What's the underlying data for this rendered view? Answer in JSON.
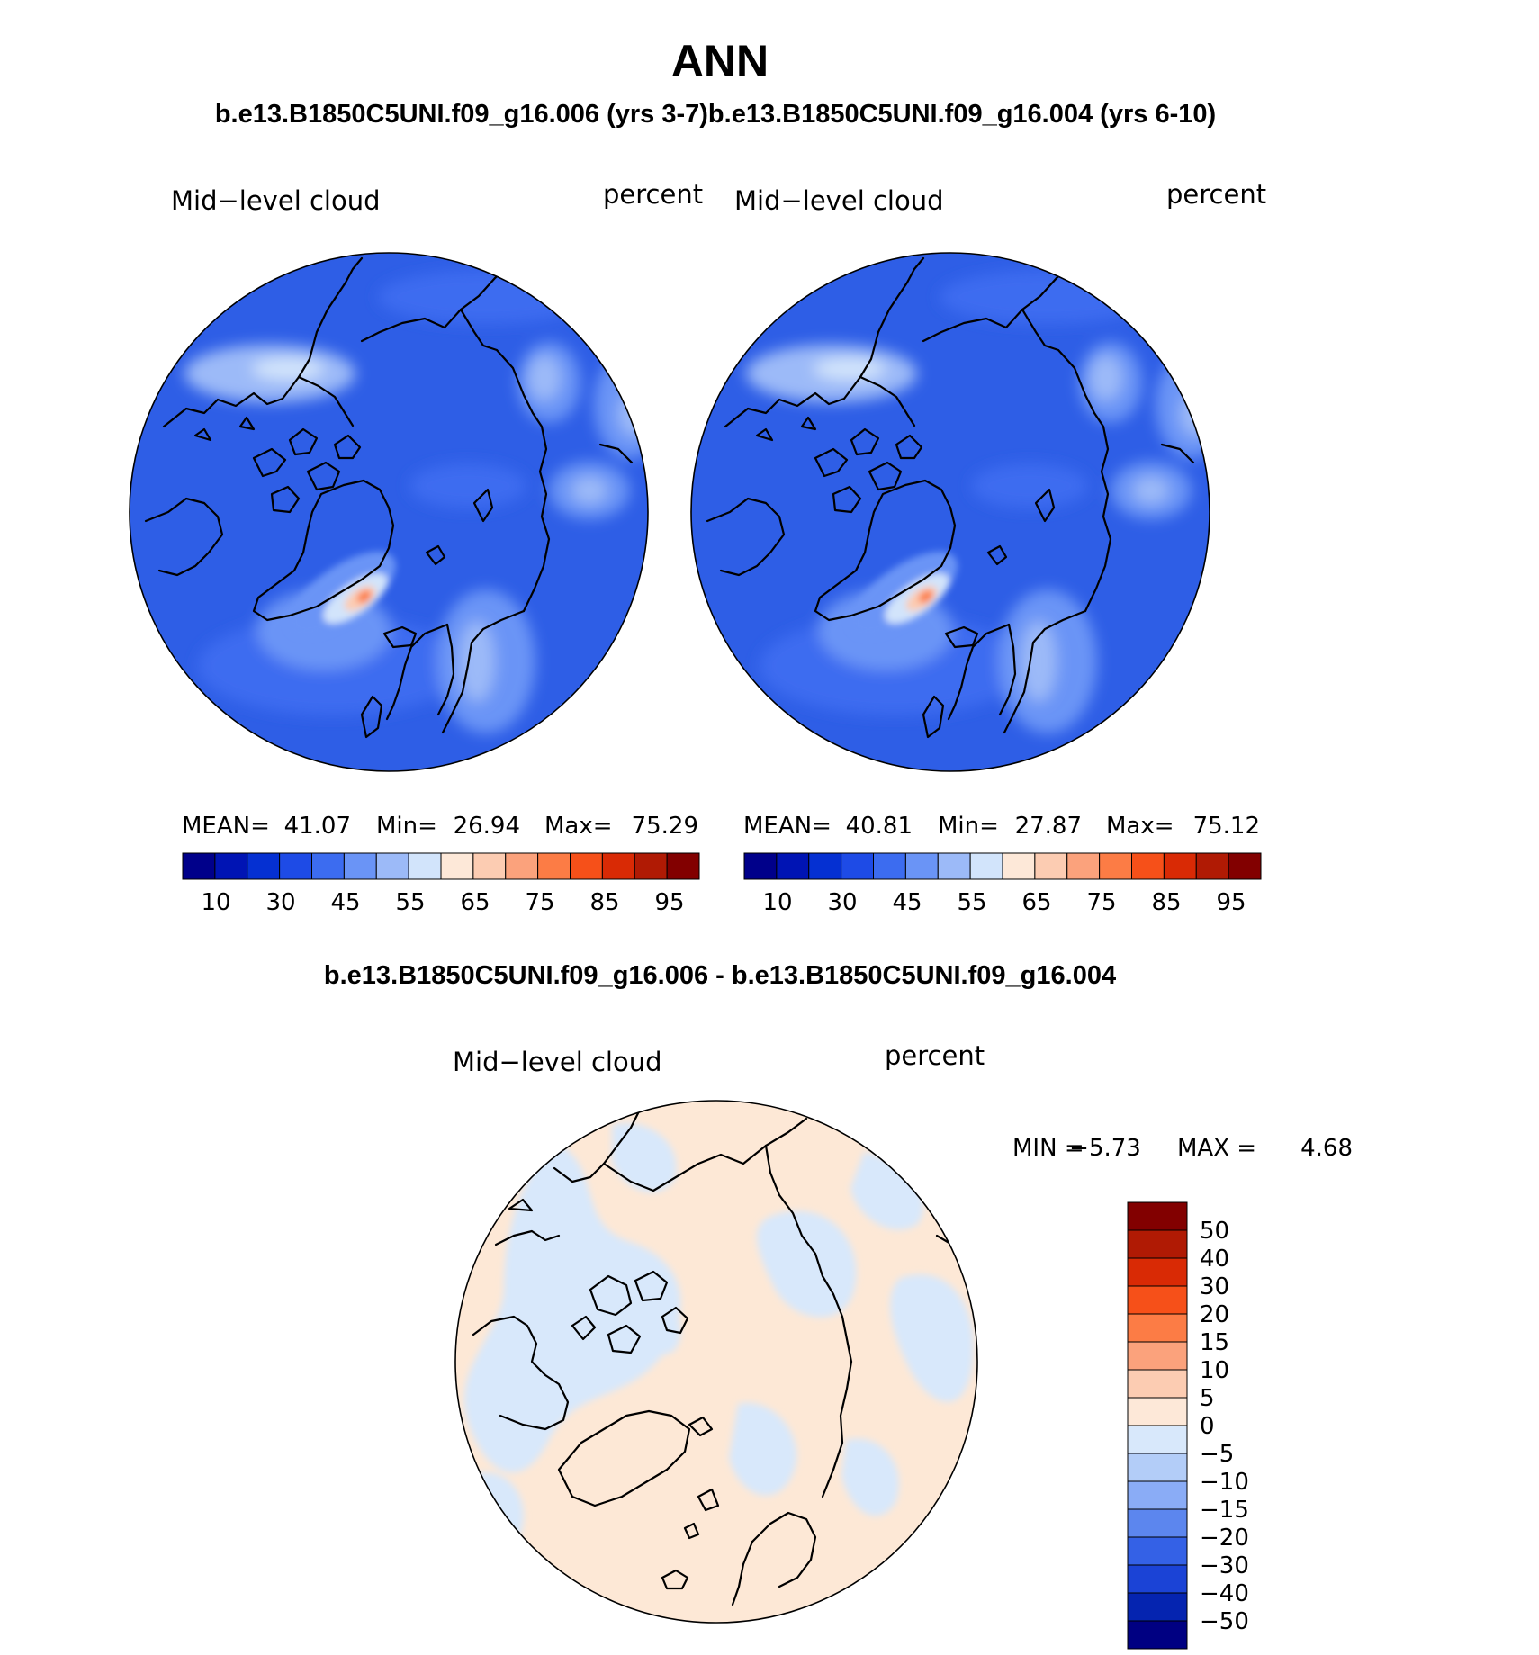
{
  "title": "ANN",
  "subtitle": "b.e13.B1850C5UNI.f09_g16.006 (yrs 3-7)b.e13.B1850C5UNI.f09_g16.004 (yrs 6-10)",
  "diff_title": "b.e13.B1850C5UNI.f09_g16.006 - b.e13.B1850C5UNI.f09_g16.004",
  "colors": {
    "ocean_blue": "#2e5ee6",
    "light_blue": "#5a88f0",
    "diff_pos": "#fde8d6",
    "diff_neg": "#d8e8fb"
  },
  "maps": [
    {
      "variable": "Mid−level cloud",
      "units": "percent",
      "stats": {
        "mean_label": "MEAN=",
        "mean": "41.07",
        "min_label": "Min=",
        "min": "26.94",
        "max_label": "Max=",
        "max": "75.29"
      }
    },
    {
      "variable": "Mid−level cloud",
      "units": "percent",
      "stats": {
        "mean_label": "MEAN=",
        "mean": "40.81",
        "min_label": "Min=",
        "min": "27.87",
        "max_label": "Max=",
        "max": "75.12"
      }
    }
  ],
  "colorbar": {
    "colors": [
      "#00008a",
      "#0014b4",
      "#0530d2",
      "#1e4be6",
      "#3c6cf0",
      "#6a94f6",
      "#9cbaf8",
      "#d2e4fb",
      "#fde8d8",
      "#fcccb2",
      "#fba27c",
      "#fc7c45",
      "#f65019",
      "#d92a05",
      "#b01a04",
      "#820000"
    ],
    "labels": [
      "10",
      "30",
      "45",
      "55",
      "65",
      "75",
      "85",
      "95"
    ]
  },
  "diff_map": {
    "variable": "Mid−level cloud",
    "units": "percent",
    "min_label": "MIN =",
    "min": "−5.73",
    "max_label": "MAX =",
    "max": "4.68"
  },
  "diff_colorbar": {
    "colors": [
      "#820000",
      "#b01a04",
      "#d92a05",
      "#f65019",
      "#fc7c45",
      "#fba27c",
      "#fcccb2",
      "#fde8d8",
      "#d8e8fb",
      "#b3cdf8",
      "#8aacf6",
      "#5c86ee",
      "#3461e6",
      "#1b43d6",
      "#0524b0",
      "#000082"
    ],
    "labels": [
      "50",
      "40",
      "30",
      "20",
      "15",
      "10",
      "5",
      "0",
      "−5",
      "−10",
      "−15",
      "−20",
      "−30",
      "−40",
      "−50"
    ]
  }
}
